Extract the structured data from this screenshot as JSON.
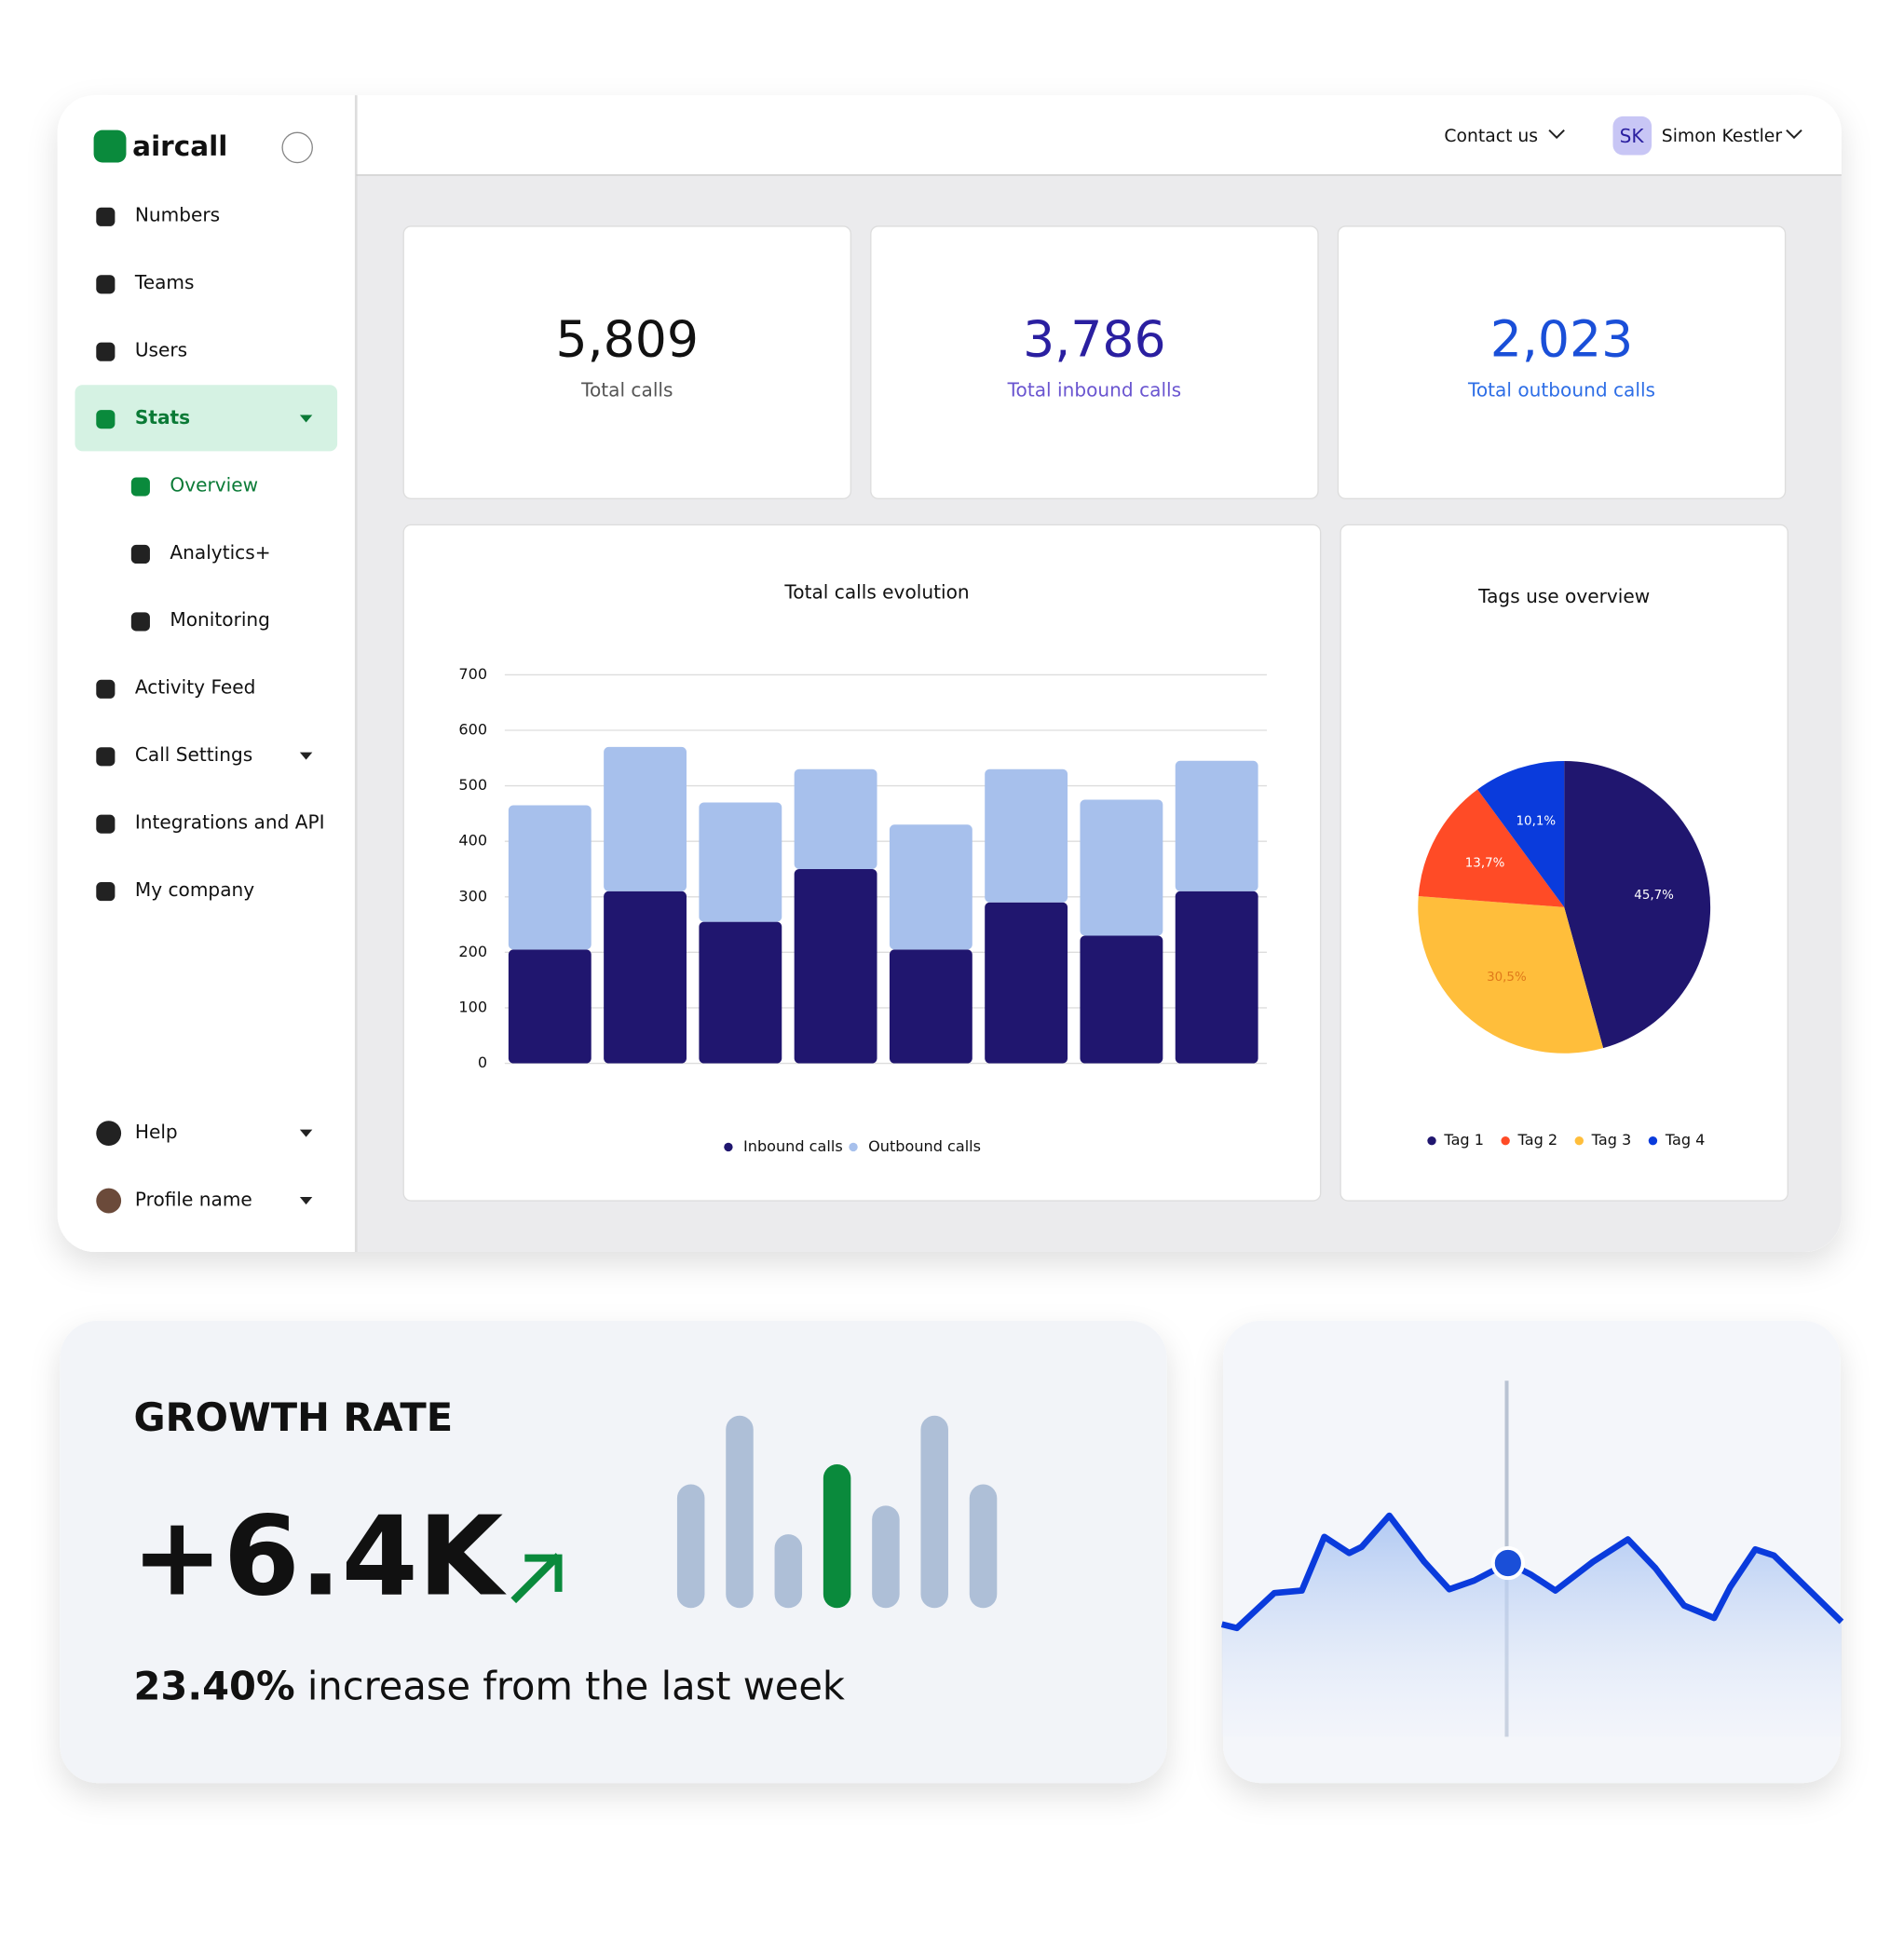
{
  "brand": "aircall",
  "sidebar": {
    "items": [
      "Numbers",
      "Teams",
      "Users",
      "Stats",
      "Overview",
      "Analytics+",
      "Monitoring",
      "Activity Feed",
      "Call Settings",
      "Integrations and API",
      "My company"
    ],
    "footer": [
      "Help",
      "Profile name"
    ]
  },
  "header": {
    "contact": "Contact us",
    "initials": "SK",
    "user": "Simon Kestler"
  },
  "kpis": [
    {
      "value": "5,809",
      "label": "Total calls"
    },
    {
      "value": "3,786",
      "label": "Total inbound calls"
    },
    {
      "value": "2,023",
      "label": "Total outbound calls"
    }
  ],
  "growth": {
    "title": "GROWTH RATE",
    "value": "+6.4K",
    "percent": "23.40%",
    "text": " increase from the last week"
  },
  "chart_data": [
    {
      "type": "bar",
      "stacked": true,
      "title": "Total calls evolution",
      "categories": [
        null,
        null,
        null,
        null,
        null,
        null,
        null,
        null
      ],
      "series": [
        {
          "name": "Inbound calls",
          "color": "#20166f",
          "values": [
            205,
            310,
            255,
            350,
            205,
            290,
            230,
            310
          ]
        },
        {
          "name": "Outbound calls",
          "color": "#a7c0ec",
          "values": [
            260,
            260,
            215,
            180,
            225,
            240,
            245,
            235
          ]
        }
      ],
      "ylim": [
        0,
        700
      ],
      "yticks": [
        0,
        100,
        200,
        300,
        400,
        500,
        600,
        700
      ],
      "grid": true,
      "legend": "bottom"
    },
    {
      "type": "pie",
      "title": "Tags use overview",
      "categories": [
        "Tag 1",
        "Tag 3",
        "Tag 2",
        "Tag 4"
      ],
      "values": [
        45.7,
        30.5,
        13.7,
        10.1
      ],
      "value_labels": [
        "45,7%",
        "30,5%",
        "13,7%",
        "10,1%"
      ],
      "colors": [
        "#20166f",
        "#ffbe3b",
        "#ff4b26",
        "#0a3bdc"
      ],
      "legend": "bottom"
    },
    {
      "type": "bar",
      "values": [
        99,
        154,
        59,
        115,
        82,
        154,
        99
      ],
      "colors": [
        "#aebfd7",
        "#aebfd7",
        "#aebfd7",
        "#0a8a3c",
        "#aebfd7",
        "#aebfd7",
        "#aebfd7"
      ]
    },
    {
      "type": "line",
      "x": [
        0,
        12,
        42,
        64,
        82,
        102,
        112,
        134,
        162,
        182,
        202,
        229,
        247,
        267,
        297,
        325,
        347,
        370,
        394,
        407,
        427,
        442,
        496
      ],
      "values": [
        90,
        87,
        115,
        117,
        160,
        147,
        152,
        177,
        140,
        118,
        125,
        139,
        130,
        117,
        140,
        158,
        135,
        105,
        95,
        120,
        150,
        145,
        92
      ],
      "color": "#0a3bdc",
      "marker": {
        "x": 229,
        "value": 139
      }
    }
  ]
}
